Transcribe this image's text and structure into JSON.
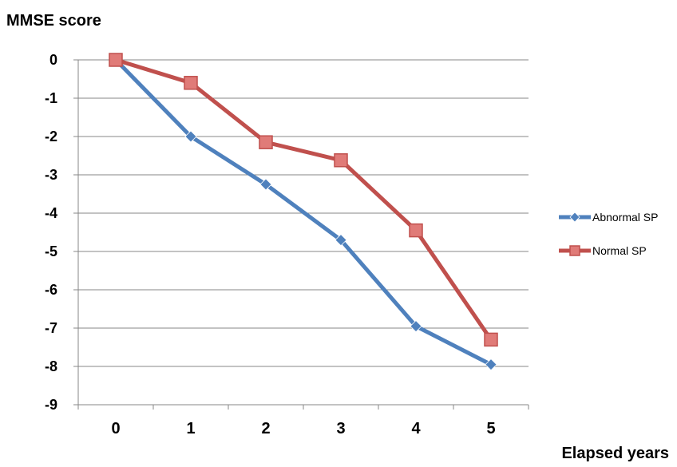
{
  "chart_data": {
    "type": "line",
    "ylabel": "MMSE score",
    "xlabel": "Elapsed years",
    "categories": [
      "0",
      "1",
      "2",
      "3",
      "4",
      "5"
    ],
    "y_ticks": [
      "0",
      "-1",
      "-2",
      "-3",
      "-4",
      "-5",
      "-6",
      "-7",
      "-8",
      "-9"
    ],
    "ylim": [
      -9,
      0
    ],
    "grid": true,
    "legend_position": "right",
    "series": [
      {
        "name": "Abnormal SP",
        "color": "#4f81bd",
        "marker": "diamond",
        "values": [
          0,
          -2.0,
          -3.25,
          -4.7,
          -6.95,
          -7.95
        ]
      },
      {
        "name": "Normal SP",
        "color": "#c0504d",
        "marker": "square",
        "values": [
          0,
          -0.6,
          -2.15,
          -2.62,
          -4.45,
          -7.3
        ]
      }
    ]
  }
}
